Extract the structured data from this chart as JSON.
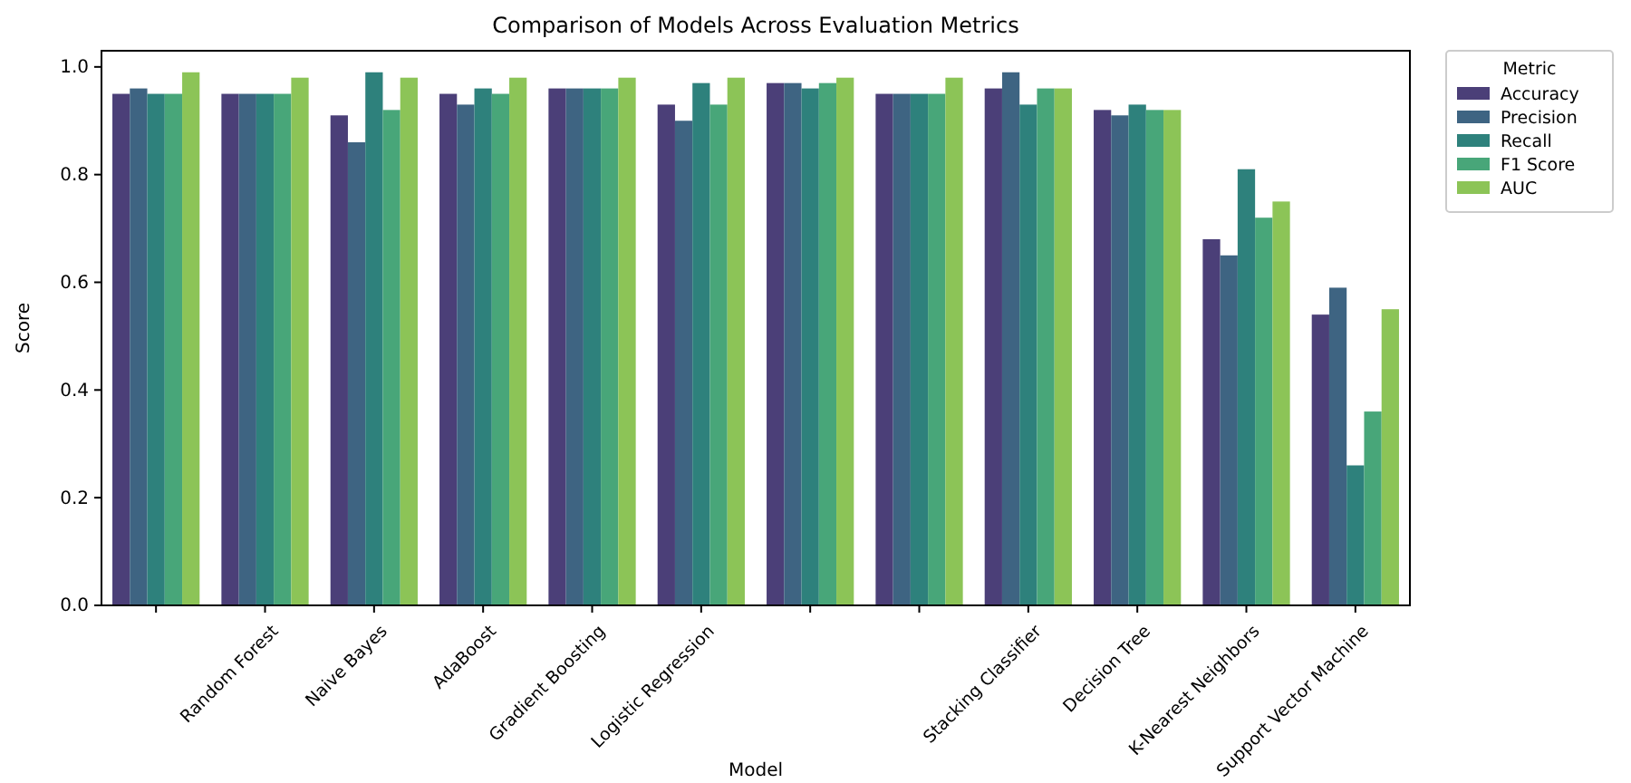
{
  "chart_data": {
    "type": "bar",
    "title": "Comparison of Models Across Evaluation Metrics",
    "xlabel": "Model",
    "ylabel": "Score",
    "legend_title": "Metric",
    "categories": [
      null,
      "Random Forest",
      "Naive Bayes",
      "AdaBoost",
      "Gradient Boosting",
      "Logistic Regression",
      null,
      null,
      "Stacking Classifier",
      "Decision Tree",
      "K-Nearest Neighbors",
      "Support Vector Machine"
    ],
    "series": [
      {
        "name": "Accuracy",
        "color": "#4b3f78",
        "values": [
          0.95,
          0.95,
          0.91,
          0.95,
          0.96,
          0.93,
          0.97,
          0.95,
          0.96,
          0.92,
          0.68,
          0.54
        ]
      },
      {
        "name": "Precision",
        "color": "#3e6482",
        "values": [
          0.96,
          0.95,
          0.86,
          0.93,
          0.96,
          0.9,
          0.97,
          0.95,
          0.99,
          0.91,
          0.65,
          0.59
        ]
      },
      {
        "name": "Recall",
        "color": "#2e817c",
        "values": [
          0.95,
          0.95,
          0.99,
          0.96,
          0.96,
          0.97,
          0.96,
          0.95,
          0.93,
          0.93,
          0.81,
          0.26
        ]
      },
      {
        "name": "F1 Score",
        "color": "#48a679",
        "values": [
          0.95,
          0.95,
          0.92,
          0.95,
          0.96,
          0.93,
          0.97,
          0.95,
          0.96,
          0.92,
          0.72,
          0.36
        ]
      },
      {
        "name": "AUC",
        "color": "#8cc457",
        "values": [
          0.99,
          0.98,
          0.98,
          0.98,
          0.98,
          0.98,
          0.98,
          0.98,
          0.96,
          0.92,
          0.75,
          0.55
        ]
      }
    ],
    "ylim": [
      0,
      1.03
    ],
    "yticks": [
      {
        "value": 0,
        "label": "0.0"
      },
      {
        "value": 0.2,
        "label": "0.2"
      },
      {
        "value": 0.4,
        "label": "0.4"
      },
      {
        "value": 0.6,
        "label": "0.6"
      },
      {
        "value": 0.8,
        "label": "0.8"
      },
      {
        "value": 1,
        "label": "1.0"
      }
    ],
    "grid": false,
    "legend": "top right"
  }
}
